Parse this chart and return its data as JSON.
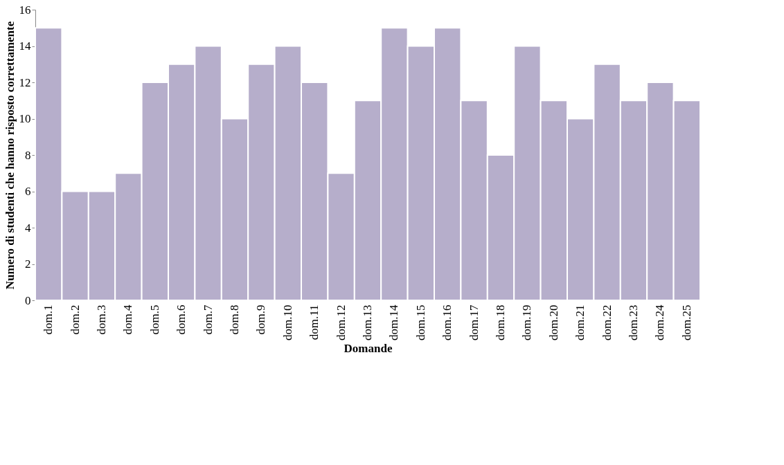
{
  "chart_data": {
    "type": "bar",
    "xlabel": "Domande",
    "ylabel": "Numero di studenti che hanno risposto correttamente",
    "categories": [
      "dom.1",
      "dom.2",
      "dom.3",
      "dom.4",
      "dom.5",
      "dom.6",
      "dom.7",
      "dom.8",
      "dom.9",
      "dom.10",
      "dom.11",
      "dom.12",
      "dom.13",
      "dom.14",
      "dom.15",
      "dom.16",
      "dom.17",
      "dom.18",
      "dom.19",
      "dom.20",
      "dom.21",
      "dom.22",
      "dom.23",
      "dom.24",
      "dom.25"
    ],
    "values": [
      15,
      6,
      6,
      7,
      12,
      13,
      14,
      10,
      13,
      14,
      12,
      7,
      11,
      15,
      14,
      15,
      11,
      8,
      14,
      11,
      10,
      13,
      11,
      12,
      11
    ],
    "color": "#b6aecb",
    "ylim": [
      0,
      16
    ],
    "yticks": [
      0,
      2,
      4,
      6,
      8,
      10,
      12,
      14,
      16
    ],
    "grid": false
  }
}
